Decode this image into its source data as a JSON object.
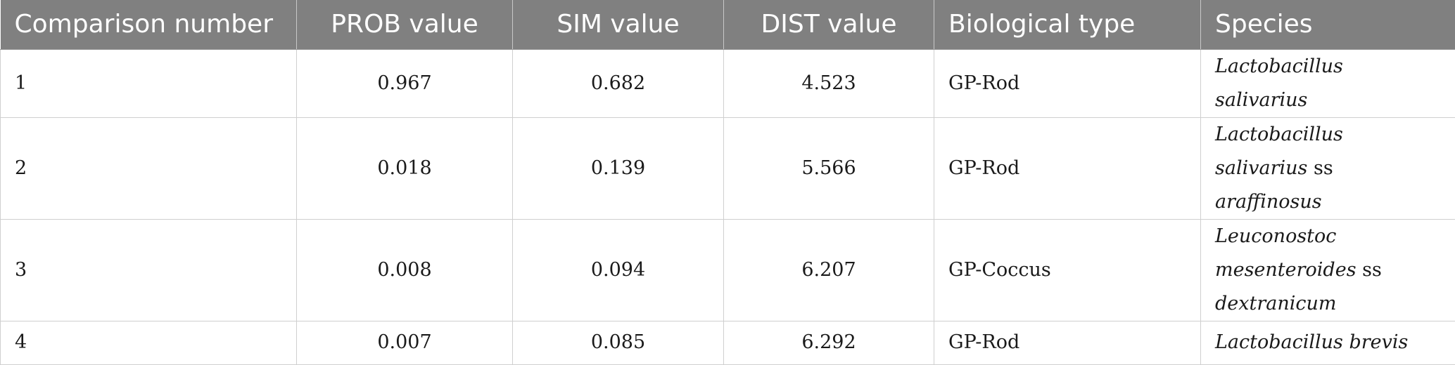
{
  "table": {
    "headers": [
      "Comparison number",
      "PROB value",
      "SIM value",
      "DIST value",
      "Biological type",
      "Species"
    ],
    "rows": [
      {
        "comparison_number": "1",
        "prob_value": "0.967",
        "sim_value": "0.682",
        "dist_value": "4.523",
        "biological_type": "GP-Rod",
        "species": {
          "italic_a": "Lactobacillus salivarius",
          "plain": "",
          "italic_b": ""
        }
      },
      {
        "comparison_number": "2",
        "prob_value": "0.018",
        "sim_value": "0.139",
        "dist_value": "5.566",
        "biological_type": "GP-Rod",
        "species": {
          "italic_a": "Lactobacillus salivarius",
          "plain": " ss ",
          "italic_b": "araffinosus"
        }
      },
      {
        "comparison_number": "3",
        "prob_value": "0.008",
        "sim_value": "0.094",
        "dist_value": "6.207",
        "biological_type": "GP-Coccus",
        "species": {
          "italic_a": "Leuconostoc mesenteroides",
          "plain": " ss ",
          "italic_b": "dextranicum"
        }
      },
      {
        "comparison_number": "4",
        "prob_value": "0.007",
        "sim_value": "0.085",
        "dist_value": "6.292",
        "biological_type": "GP-Rod",
        "species": {
          "italic_a": "Lactobacillus brevis",
          "plain": "",
          "italic_b": ""
        }
      }
    ]
  }
}
